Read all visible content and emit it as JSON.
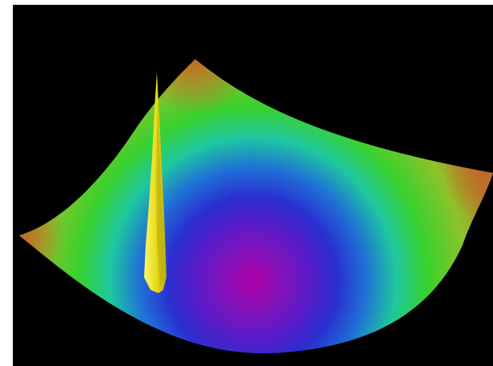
{
  "scene": {
    "background_color": "#000000",
    "frame_color": "#ffffff",
    "surface": {
      "shape": "paraboloid-bowl",
      "colormap": [
        "#c06a28",
        "#8fc22a",
        "#39d12e",
        "#1fc7a0",
        "#1f6fd6",
        "#2a2fd0",
        "#5a1bc7",
        "#8a10b8",
        "#b000a8"
      ],
      "minimum_color": "#b000a8",
      "corner_color": "#c06a28"
    },
    "spike": {
      "shape": "thin-spike",
      "color": "#e6dc1a",
      "highlight_color": "#fff46a",
      "shadow_color": "#b9a90e"
    }
  }
}
